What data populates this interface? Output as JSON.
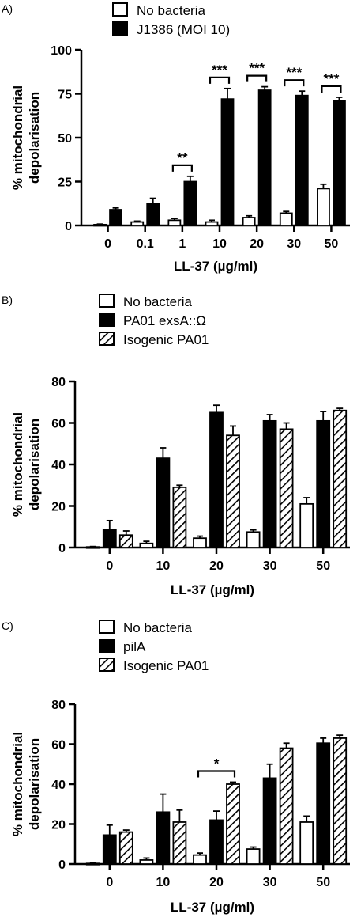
{
  "chart_data": [
    {
      "type": "bar",
      "panel_label": "A)",
      "categories": [
        "0",
        "0.1",
        "1",
        "10",
        "20",
        "30",
        "50"
      ],
      "xlabel": "LL-37 (µg/ml)",
      "ylabel": "% mitochondrial depolarisation",
      "ylim": [
        0,
        100
      ],
      "yticks": [
        "0",
        "25",
        "50",
        "75",
        "100"
      ],
      "legend_position": "top",
      "series": [
        {
          "name": "No bacteria",
          "pattern": "white",
          "values": [
            0.5,
            2,
            3,
            2,
            4.5,
            7,
            21
          ],
          "errors": [
            0.3,
            0.5,
            1,
            1,
            1,
            1,
            2.5
          ]
        },
        {
          "name": "J1386 (MOI 10)",
          "pattern": "black",
          "values": [
            9,
            12.5,
            25,
            72,
            77,
            74,
            71
          ],
          "errors": [
            1,
            3,
            3,
            6,
            2,
            2.5,
            2
          ]
        }
      ],
      "significance": [
        {
          "category": "1",
          "label": "**"
        },
        {
          "category": "10",
          "label": "***"
        },
        {
          "category": "20",
          "label": "***"
        },
        {
          "category": "30",
          "label": "***"
        },
        {
          "category": "50",
          "label": "***"
        }
      ]
    },
    {
      "type": "bar",
      "panel_label": "B)",
      "categories": [
        "0",
        "10",
        "20",
        "30",
        "50"
      ],
      "xlabel": "LL-37 (µg/ml)",
      "ylabel": "% mitochondrial depolarisation",
      "ylim": [
        0,
        80
      ],
      "yticks": [
        "0",
        "20",
        "40",
        "60",
        "80"
      ],
      "legend_position": "top",
      "series": [
        {
          "name": "No bacteria",
          "pattern": "white",
          "values": [
            0.3,
            2,
            4.5,
            7.5,
            21
          ],
          "errors": [
            0.2,
            1,
            1,
            1,
            3
          ]
        },
        {
          "name": "PA01 exsA::Ω",
          "pattern": "black",
          "values": [
            8.5,
            43,
            65,
            61,
            61
          ],
          "errors": [
            4.5,
            5,
            3.5,
            3,
            4.5
          ]
        },
        {
          "name": "Isogenic PA01",
          "pattern": "hatched",
          "values": [
            6,
            29,
            54,
            57,
            66
          ],
          "errors": [
            2,
            1,
            4.5,
            3,
            1
          ]
        }
      ],
      "significance": []
    },
    {
      "type": "bar",
      "panel_label": "C)",
      "categories": [
        "0",
        "10",
        "20",
        "30",
        "50"
      ],
      "xlabel": "LL-37 (µg/ml)",
      "ylabel": "% mitochondrial depolarisation",
      "ylim": [
        0,
        80
      ],
      "yticks": [
        "0",
        "20",
        "40",
        "60",
        "80"
      ],
      "legend_position": "top",
      "series": [
        {
          "name": "No bacteria",
          "pattern": "white",
          "values": [
            0.3,
            2,
            4.5,
            7.5,
            21
          ],
          "errors": [
            0.2,
            1,
            1,
            1,
            3
          ]
        },
        {
          "name": "pilA",
          "pattern": "black",
          "values": [
            14.5,
            26,
            22,
            43,
            60.5
          ],
          "errors": [
            5,
            9,
            4.5,
            7,
            2.5
          ]
        },
        {
          "name": "Isogenic PA01",
          "pattern": "hatched",
          "values": [
            16,
            21,
            40,
            58,
            63
          ],
          "errors": [
            1,
            6,
            1,
            2.5,
            1.5
          ]
        }
      ],
      "significance": [
        {
          "category": "20",
          "label": "*"
        }
      ]
    }
  ]
}
